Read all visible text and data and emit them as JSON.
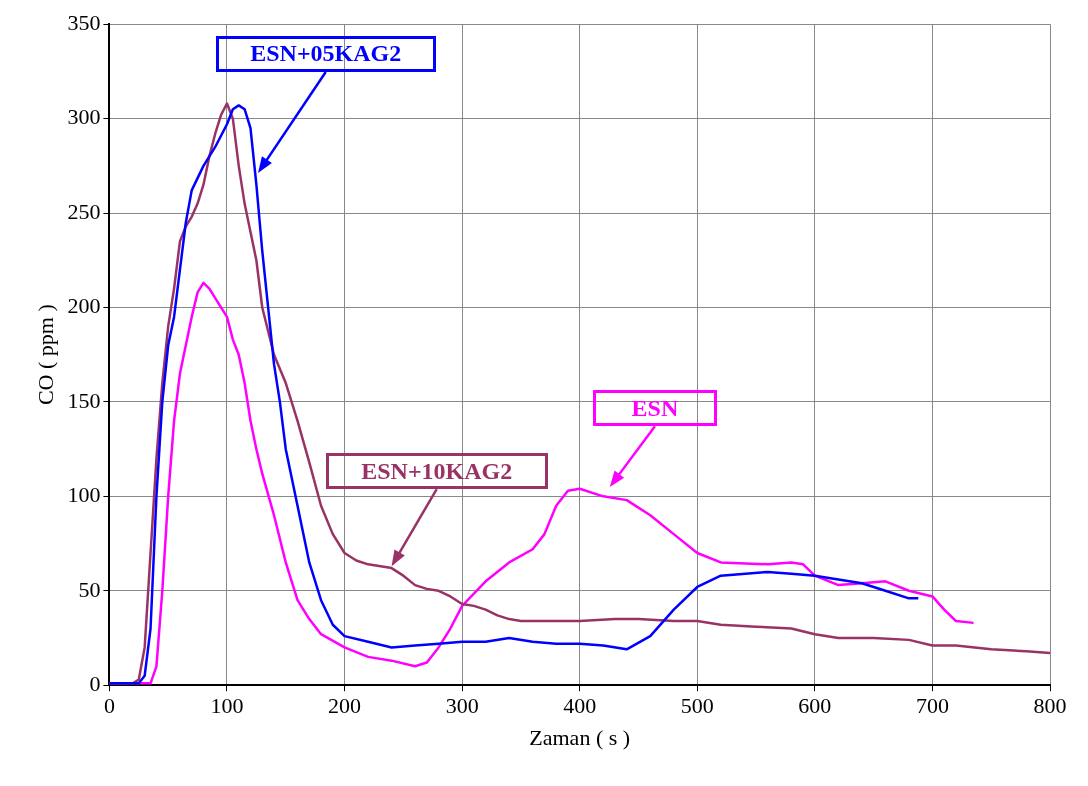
{
  "chart_data": {
    "type": "line",
    "xlabel": "Zaman ( s )",
    "ylabel": "CO ( ppm )",
    "xlim": [
      0,
      800
    ],
    "ylim": [
      0,
      350
    ],
    "xticks": [
      0,
      100,
      200,
      300,
      400,
      500,
      600,
      700,
      800
    ],
    "yticks": [
      0,
      50,
      100,
      150,
      200,
      250,
      300,
      350
    ],
    "grid": true,
    "marker": "none",
    "line_style": "solid",
    "series": [
      {
        "color": "#0000ff",
        "x": [
          0,
          25,
          30,
          35,
          40,
          45,
          50,
          55,
          60,
          65,
          70,
          80,
          90,
          100,
          105,
          110,
          115,
          120,
          125,
          130,
          135,
          140,
          145,
          150,
          160,
          170,
          180,
          190,
          200,
          220,
          240,
          260,
          280,
          300,
          320,
          340,
          360,
          380,
          400,
          420,
          440,
          460,
          480,
          500,
          520,
          560,
          580,
          600,
          640,
          660,
          680,
          688
        ],
        "values": [
          1,
          1,
          5,
          30,
          100,
          150,
          180,
          195,
          220,
          245,
          262,
          275,
          285,
          297,
          305,
          307,
          305,
          295,
          265,
          230,
          200,
          170,
          150,
          125,
          95,
          65,
          45,
          32,
          26,
          23,
          20,
          21,
          22,
          23,
          23,
          25,
          23,
          22,
          22,
          21,
          19,
          26,
          40,
          52,
          58,
          60,
          59,
          58,
          54,
          50,
          46,
          46
        ]
      },
      {
        "color": "#993366",
        "x": [
          0,
          20,
          25,
          30,
          35,
          40,
          45,
          50,
          55,
          60,
          65,
          70,
          75,
          80,
          85,
          90,
          95,
          100,
          105,
          110,
          115,
          120,
          125,
          130,
          140,
          150,
          160,
          170,
          180,
          190,
          200,
          210,
          220,
          240,
          250,
          260,
          270,
          280,
          290,
          300,
          310,
          320,
          330,
          340,
          350,
          400,
          430,
          450,
          480,
          500,
          520,
          550,
          580,
          600,
          620,
          650,
          680,
          700,
          720,
          750,
          780,
          800
        ],
        "values": [
          1,
          1,
          3,
          20,
          70,
          120,
          160,
          190,
          210,
          235,
          243,
          248,
          255,
          265,
          280,
          292,
          302,
          308,
          300,
          275,
          255,
          240,
          225,
          200,
          175,
          160,
          140,
          118,
          95,
          80,
          70,
          66,
          64,
          62,
          58,
          53,
          51,
          50,
          47,
          43,
          42,
          40,
          37,
          35,
          34,
          34,
          35,
          35,
          34,
          34,
          32,
          31,
          30,
          27,
          25,
          25,
          24,
          21,
          21,
          19,
          18,
          17
        ]
      },
      {
        "color": "#ff00ff",
        "x": [
          0,
          35,
          40,
          45,
          50,
          55,
          60,
          65,
          70,
          75,
          80,
          85,
          90,
          100,
          105,
          110,
          115,
          120,
          125,
          130,
          140,
          150,
          160,
          170,
          180,
          200,
          220,
          240,
          260,
          270,
          280,
          290,
          300,
          320,
          340,
          360,
          370,
          380,
          390,
          400,
          420,
          440,
          460,
          480,
          500,
          520,
          560,
          580,
          590,
          600,
          620,
          640,
          660,
          680,
          700,
          710,
          720,
          735
        ],
        "values": [
          1,
          1,
          10,
          50,
          100,
          140,
          165,
          180,
          195,
          208,
          213,
          210,
          205,
          195,
          183,
          175,
          160,
          140,
          125,
          112,
          90,
          65,
          45,
          35,
          27,
          20,
          15,
          13,
          10,
          12,
          20,
          30,
          42,
          55,
          65,
          72,
          80,
          95,
          103,
          104,
          100,
          98,
          90,
          80,
          70,
          65,
          64,
          65,
          64,
          58,
          53,
          54,
          55,
          50,
          47,
          40,
          34,
          33
        ]
      }
    ],
    "annotations": [
      "ESN+05KAG2",
      "ESN+10KAG2",
      "ESN"
    ]
  }
}
